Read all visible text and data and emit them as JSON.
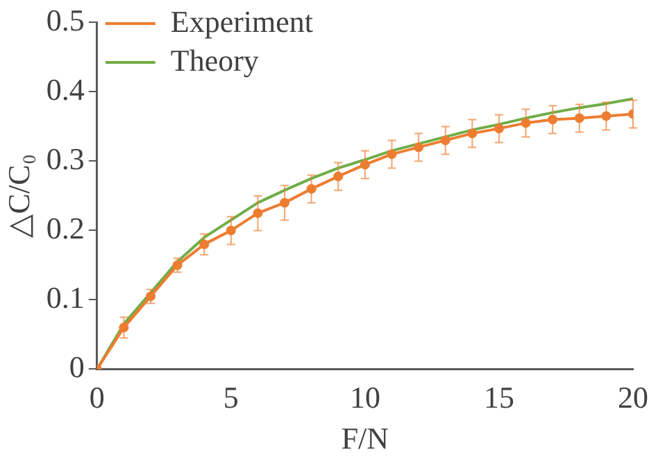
{
  "chart_data": {
    "type": "line",
    "xlabel": "F/N",
    "ylabel": "△C/C₀",
    "x": [
      0,
      1,
      2,
      3,
      4,
      5,
      6,
      7,
      8,
      9,
      10,
      11,
      12,
      13,
      14,
      15,
      16,
      17,
      18,
      19,
      20
    ],
    "series": [
      {
        "name": "Experiment",
        "color": "#ed7d31",
        "marker": "circle",
        "values": [
          0,
          0.06,
          0.105,
          0.15,
          0.18,
          0.2,
          0.225,
          0.24,
          0.26,
          0.278,
          0.295,
          0.31,
          0.32,
          0.33,
          0.34,
          0.347,
          0.355,
          0.36,
          0.362,
          0.365,
          0.368
        ],
        "errors": [
          null,
          0.015,
          0.01,
          0.01,
          0.015,
          0.02,
          0.025,
          0.025,
          0.02,
          0.02,
          0.02,
          0.02,
          0.02,
          0.02,
          0.02,
          0.02,
          0.02,
          0.02,
          0.02,
          0.02,
          0.02
        ]
      },
      {
        "name": "Theory",
        "color": "#70ad47",
        "marker": "none",
        "values": [
          0,
          0.065,
          0.11,
          0.155,
          0.19,
          0.215,
          0.24,
          0.258,
          0.275,
          0.29,
          0.302,
          0.315,
          0.325,
          0.335,
          0.345,
          0.353,
          0.362,
          0.37,
          0.377,
          0.383,
          0.39
        ]
      }
    ],
    "xlim": [
      0,
      20
    ],
    "xticks": [
      0,
      5,
      10,
      15,
      20
    ],
    "ylim": [
      0,
      0.5
    ],
    "yticks": [
      0,
      0.1,
      0.2,
      0.3,
      0.4,
      0.5
    ],
    "grid": false,
    "legend": "top left"
  }
}
